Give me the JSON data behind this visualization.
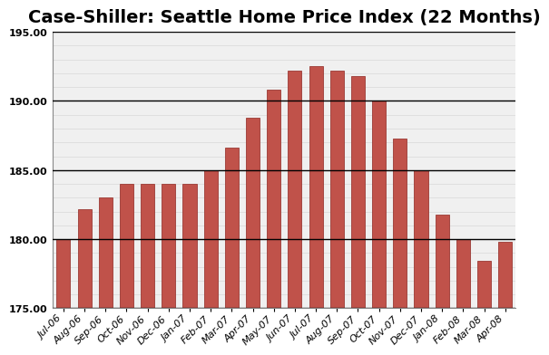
{
  "title": "Case-Shiller: Seattle Home Price Index (22 Months)",
  "categories": [
    "Jul-06",
    "Aug-06",
    "Sep-06",
    "Oct-06",
    "Nov-06",
    "Dec-06",
    "Jan-07",
    "Feb-07",
    "Mar-07",
    "Apr-07",
    "May-07",
    "Jun-07",
    "Jul-07",
    "Aug-07",
    "Sep-07",
    "Oct-07",
    "Nov-07",
    "Dec-07",
    "Jan-08",
    "Feb-08",
    "Mar-08",
    "Apr-08"
  ],
  "values": [
    180.0,
    182.2,
    183.0,
    184.0,
    184.0,
    184.0,
    184.0,
    185.0,
    186.6,
    188.8,
    190.8,
    192.2,
    192.5,
    192.2,
    191.8,
    190.0,
    187.3,
    185.0,
    181.8,
    180.0,
    178.4,
    179.8
  ],
  "bar_color": "#c0524a",
  "bar_edge_color": "#9b3a34",
  "ylim_min": 175.0,
  "ylim_max": 195.0,
  "yticks": [
    175.0,
    180.0,
    185.0,
    190.0,
    195.0
  ],
  "background_color": "#ffffff",
  "plot_bg_color": "#f0f0f0",
  "minor_grid_color": "#d8d8d8",
  "major_grid_color": "#000000",
  "title_fontsize": 14,
  "tick_fontsize": 8,
  "major_grid_y": [
    175.0,
    180.0,
    185.0,
    190.0,
    195.0
  ],
  "minor_grid_step": 1.0
}
